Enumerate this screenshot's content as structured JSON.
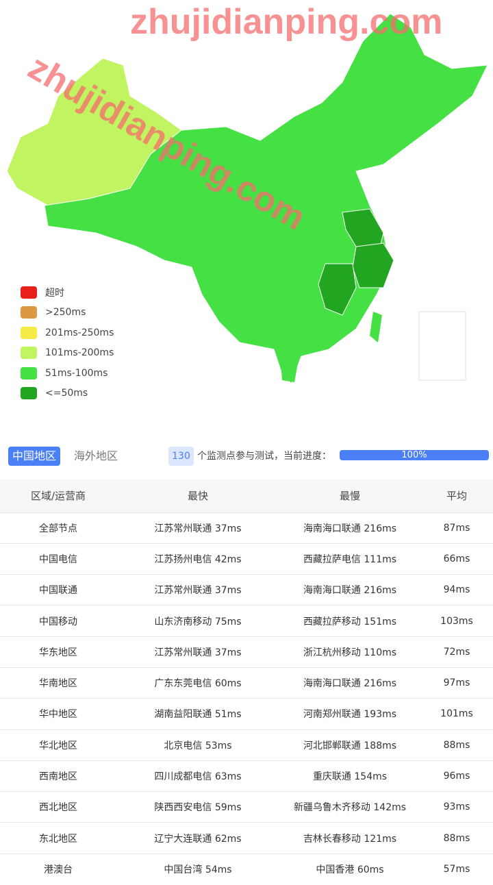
{
  "legend": [
    {
      "label": "超时",
      "color": "#e8201a"
    },
    {
      "label": ">250ms",
      "color": "#dd9844"
    },
    {
      "label": "201ms-250ms",
      "color": "#f5ea46"
    },
    {
      "label": "101ms-200ms",
      "color": "#c0f460"
    },
    {
      "label": "51ms-100ms",
      "color": "#44e044"
    },
    {
      "label": "<=50ms",
      "color": "#22a622"
    }
  ],
  "tabs": {
    "china": "中国地区",
    "overseas": "海外地区"
  },
  "status": {
    "count": "130",
    "text": "个监测点参与测试，当前进度：",
    "progress_label": "100%",
    "progress": 100
  },
  "table": {
    "headers": [
      "区域/运营商",
      "最快",
      "最慢",
      "平均"
    ],
    "rows": [
      [
        "全部节点",
        "江苏常州联通 37ms",
        "海南海口联通 216ms",
        "87ms"
      ],
      [
        "中国电信",
        "江苏扬州电信 42ms",
        "西藏拉萨电信 111ms",
        "66ms"
      ],
      [
        "中国联通",
        "江苏常州联通 37ms",
        "海南海口联通 216ms",
        "94ms"
      ],
      [
        "中国移动",
        "山东济南移动 75ms",
        "西藏拉萨移动 151ms",
        "103ms"
      ],
      [
        "华东地区",
        "江苏常州联通 37ms",
        "浙江杭州移动 110ms",
        "72ms"
      ],
      [
        "华南地区",
        "广东东莞电信 60ms",
        "海南海口联通 216ms",
        "97ms"
      ],
      [
        "华中地区",
        "湖南益阳联通 51ms",
        "河南郑州联通 193ms",
        "101ms"
      ],
      [
        "华北地区",
        "北京电信 53ms",
        "河北邯郸联通 188ms",
        "88ms"
      ],
      [
        "西南地区",
        "四川成都电信 63ms",
        "重庆联通 154ms",
        "96ms"
      ],
      [
        "西北地区",
        "陕西西安电信 59ms",
        "新疆乌鲁木齐移动 142ms",
        "93ms"
      ],
      [
        "东北地区",
        "辽宁大连联通 62ms",
        "吉林长春移动 121ms",
        "88ms"
      ],
      [
        "港澳台",
        "中国台湾 54ms",
        "中国香港 60ms",
        "57ms"
      ]
    ]
  },
  "watermark": "zhujidianping.com"
}
